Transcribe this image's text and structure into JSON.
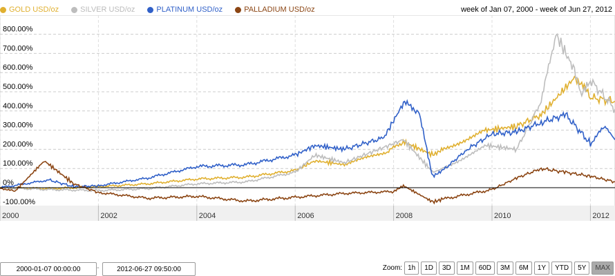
{
  "header": {
    "range_text": "week of Jan 07, 2000 - week of Jun 27, 2012"
  },
  "controls": {
    "start": "2000-01-07 00:00:00",
    "separator": "-",
    "end": "2012-06-27 09:50:00",
    "zoom_label": "Zoom:",
    "zoom_buttons": [
      "1h",
      "1D",
      "3D",
      "1M",
      "60D",
      "3M",
      "6M",
      "1Y",
      "YTD",
      "5Y",
      "MAX"
    ],
    "active": "MAX"
  },
  "chart_data": {
    "type": "line",
    "xlim": [
      2000,
      2012.5
    ],
    "ylim": [
      -110,
      830
    ],
    "x_ticks": [
      "2000",
      "2002",
      "2004",
      "2006",
      "2008",
      "2010",
      "2012"
    ],
    "y_ticks": [
      "800.00%",
      "700.00%",
      "600.00%",
      "500.00%",
      "400.00%",
      "300.00%",
      "200.00%",
      "100.00%",
      "0%",
      "-100.00%"
    ],
    "y_values": [
      800,
      700,
      600,
      500,
      400,
      300,
      200,
      100,
      0,
      -100
    ],
    "series": [
      {
        "name": "GOLD USD/oz",
        "color": "#e0b030",
        "points": [
          [
            2000,
            0
          ],
          [
            2001,
            -5
          ],
          [
            2002,
            5
          ],
          [
            2003,
            20
          ],
          [
            2004,
            45
          ],
          [
            2005,
            55
          ],
          [
            2006,
            90
          ],
          [
            2006.4,
            140
          ],
          [
            2007,
            120
          ],
          [
            2007.9,
            190
          ],
          [
            2008.2,
            240
          ],
          [
            2008.8,
            170
          ],
          [
            2009,
            200
          ],
          [
            2009.9,
            300
          ],
          [
            2010.5,
            320
          ],
          [
            2011,
            380
          ],
          [
            2011.7,
            580
          ],
          [
            2012,
            470
          ],
          [
            2012.5,
            450
          ]
        ]
      },
      {
        "name": "SILVER USD/oz",
        "color": "#bdbdbd",
        "points": [
          [
            2000,
            0
          ],
          [
            2001,
            -10
          ],
          [
            2002,
            -15
          ],
          [
            2003,
            -5
          ],
          [
            2004,
            20
          ],
          [
            2005,
            30
          ],
          [
            2006,
            80
          ],
          [
            2006.4,
            170
          ],
          [
            2007,
            130
          ],
          [
            2008.2,
            250
          ],
          [
            2008.8,
            80
          ],
          [
            2009,
            100
          ],
          [
            2009.9,
            220
          ],
          [
            2010.5,
            200
          ],
          [
            2011,
            450
          ],
          [
            2011.3,
            800
          ],
          [
            2011.7,
            600
          ],
          [
            2011.8,
            480
          ],
          [
            2012,
            560
          ],
          [
            2012.5,
            410
          ]
        ]
      },
      {
        "name": "PLATINUM USD/oz",
        "color": "#3060c8",
        "points": [
          [
            2000,
            0
          ],
          [
            2001,
            40
          ],
          [
            2001.5,
            5
          ],
          [
            2002,
            10
          ],
          [
            2003,
            50
          ],
          [
            2004,
            110
          ],
          [
            2005,
            120
          ],
          [
            2006,
            170
          ],
          [
            2006.4,
            220
          ],
          [
            2007,
            200
          ],
          [
            2007.8,
            260
          ],
          [
            2008.2,
            440
          ],
          [
            2008.5,
            400
          ],
          [
            2008.8,
            60
          ],
          [
            2009,
            90
          ],
          [
            2009.5,
            200
          ],
          [
            2010,
            280
          ],
          [
            2010.5,
            290
          ],
          [
            2011,
            340
          ],
          [
            2011.5,
            380
          ],
          [
            2012,
            230
          ],
          [
            2012.3,
            320
          ],
          [
            2012.5,
            250
          ]
        ]
      },
      {
        "name": "PALLADIUM USD/oz",
        "color": "#8b4513",
        "points": [
          [
            2000,
            0
          ],
          [
            2000.3,
            -20
          ],
          [
            2000.9,
            140
          ],
          [
            2001.5,
            20
          ],
          [
            2002,
            -25
          ],
          [
            2003,
            -55
          ],
          [
            2004,
            -45
          ],
          [
            2005,
            -70
          ],
          [
            2006,
            -50
          ],
          [
            2007,
            -30
          ],
          [
            2008,
            -20
          ],
          [
            2008.2,
            10
          ],
          [
            2008.8,
            -75
          ],
          [
            2009,
            -60
          ],
          [
            2010,
            -10
          ],
          [
            2010.5,
            50
          ],
          [
            2011,
            100
          ],
          [
            2011.5,
            80
          ],
          [
            2012,
            60
          ],
          [
            2012.5,
            30
          ]
        ]
      }
    ]
  }
}
